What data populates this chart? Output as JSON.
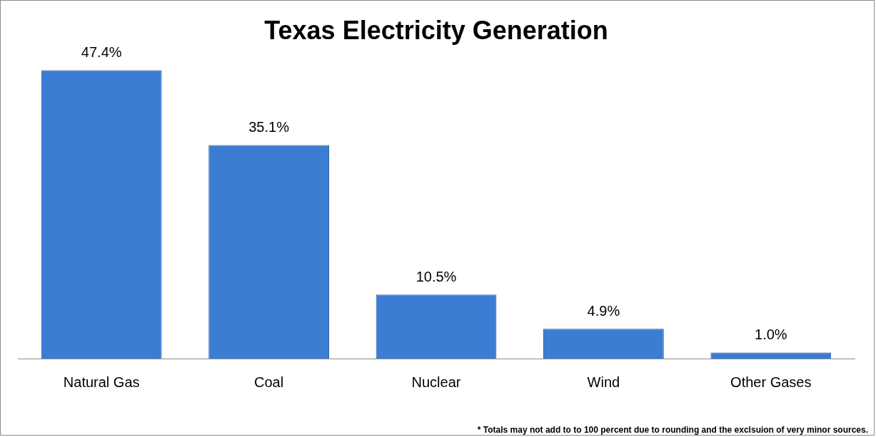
{
  "chart_data": {
    "type": "bar",
    "title": "Texas Electricity Generation",
    "categories": [
      "Natural Gas",
      "Coal",
      "Nuclear",
      "Wind",
      "Other Gases"
    ],
    "values": [
      47.4,
      35.1,
      10.5,
      4.9,
      1.0
    ],
    "value_labels": [
      "47.4%",
      "35.1%",
      "10.5%",
      "4.9%",
      "1.0%"
    ],
    "color": "#3c7dd4",
    "grid": false,
    "tick_labels": "x",
    "annotations": [
      "* Totals may not add to to 100 percent due to rounding and the exclsuion of very minor sources."
    ]
  }
}
